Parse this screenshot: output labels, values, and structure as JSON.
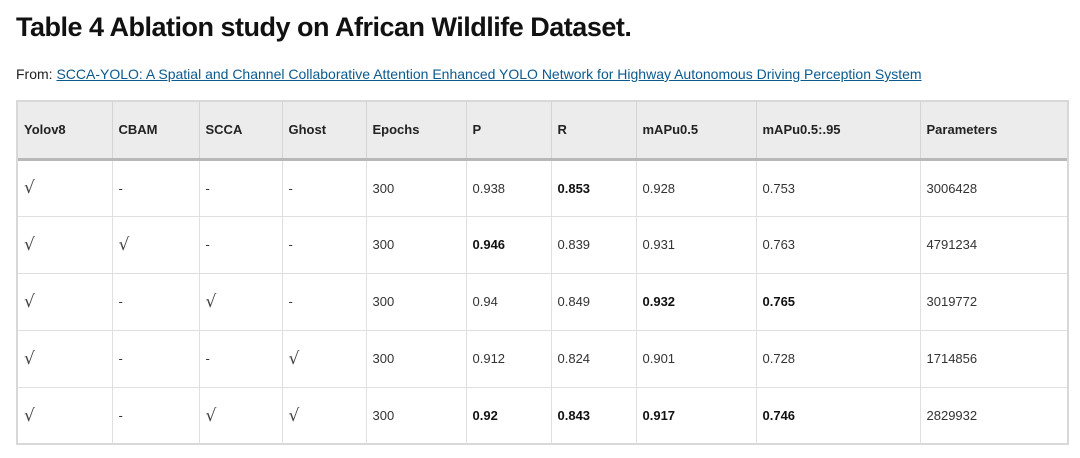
{
  "title": "Table 4 Ablation study on African Wildlife Dataset.",
  "from_label": "From:",
  "source_link": "SCCA-YOLO: A Spatial and Channel Collaborative Attention Enhanced YOLO Network for Highway Autonomous Driving Perception System",
  "headers": [
    "Yolov8",
    "CBAM",
    "SCCA",
    "Ghost",
    "Epochs",
    "P",
    "R",
    "mAPu0.5",
    "mAPu0.5:.95",
    "Parameters"
  ],
  "rows": [
    [
      "√",
      "-",
      "-",
      "-",
      "300",
      "0.938",
      "0.853",
      "0.928",
      "0.753",
      "3006428"
    ],
    [
      "√",
      "√",
      "-",
      "-",
      "300",
      "0.946",
      "0.839",
      "0.931",
      "0.763",
      "4791234"
    ],
    [
      "√",
      "-",
      "√",
      "-",
      "300",
      "0.94",
      "0.849",
      "0.932",
      "0.765",
      "3019772"
    ],
    [
      "√",
      "-",
      "-",
      "√",
      "300",
      "0.912",
      "0.824",
      "0.901",
      "0.728",
      "1714856"
    ],
    [
      "√",
      "-",
      "√",
      "√",
      "300",
      "0.92",
      "0.843",
      "0.917",
      "0.746",
      "2829932"
    ]
  ]
}
